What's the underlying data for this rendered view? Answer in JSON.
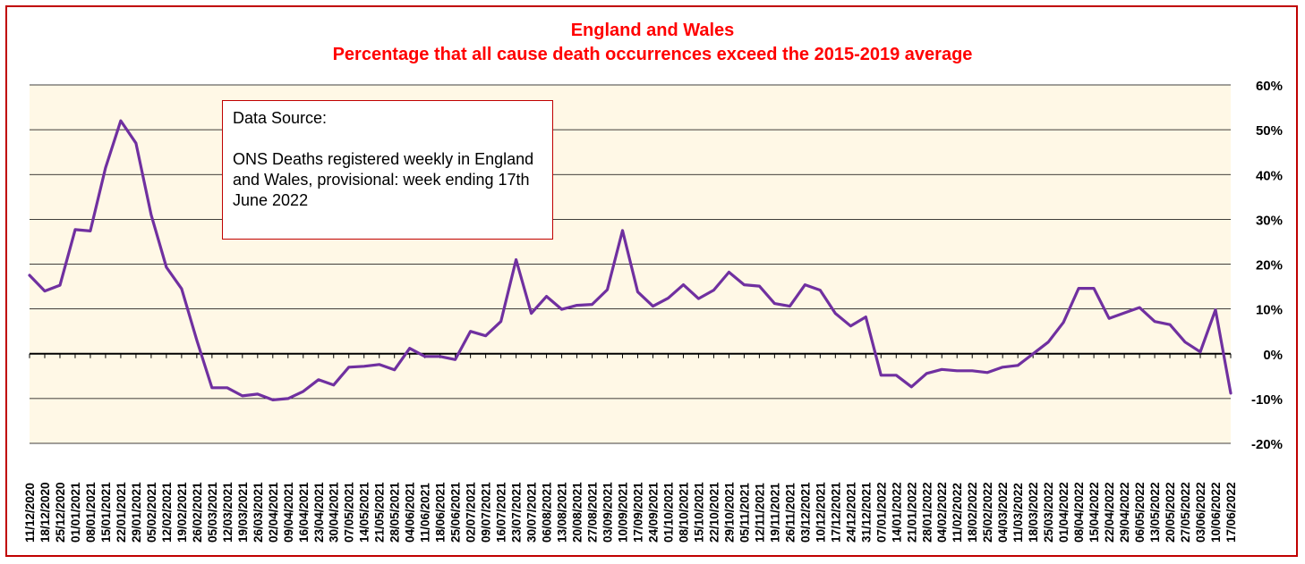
{
  "chart_data": {
    "type": "line",
    "title": "England and Wales",
    "subtitle": "Percentage that all cause death occurrences exceed the 2015-2019 average",
    "xlabel": "",
    "ylabel": "",
    "ylim": [
      -20,
      60
    ],
    "y_ticks": [
      60,
      50,
      40,
      30,
      20,
      10,
      0,
      -10,
      -20
    ],
    "y_tick_labels": [
      "60%",
      "50%",
      "40%",
      "30%",
      "20%",
      "10%",
      "0%",
      "-10%",
      "-20%"
    ],
    "y_axis_position": "right",
    "grid": true,
    "legend": "none",
    "background_color": "#fff8e6",
    "line_color": "#7030a0",
    "categories": [
      "11/12/2020",
      "18/12/2020",
      "25/12/2020",
      "01/01/2021",
      "08/01/2021",
      "15/01/2021",
      "22/01/2021",
      "29/01/2021",
      "05/02/2021",
      "12/02/2021",
      "19/02/2021",
      "26/02/2021",
      "05/03/2021",
      "12/03/2021",
      "19/03/2021",
      "26/03/2021",
      "02/04/2021",
      "09/04/2021",
      "16/04/2021",
      "23/04/2021",
      "30/04/2021",
      "07/05/2021",
      "14/05/2021",
      "21/05/2021",
      "28/05/2021",
      "04/06/2021",
      "11/06/2021",
      "18/06/2021",
      "25/06/2021",
      "02/07/2021",
      "09/07/2021",
      "16/07/2021",
      "23/07/2021",
      "30/07/2021",
      "06/08/2021",
      "13/08/2021",
      "20/08/2021",
      "27/08/2021",
      "03/09/2021",
      "10/09/2021",
      "17/09/2021",
      "24/09/2021",
      "01/10/2021",
      "08/10/2021",
      "15/10/2021",
      "22/10/2021",
      "29/10/2021",
      "05/11/2021",
      "12/11/2021",
      "19/11/2021",
      "26/11/2021",
      "03/12/2021",
      "10/12/2021",
      "17/12/2021",
      "24/12/2021",
      "31/12/2021",
      "07/01/2022",
      "14/01/2022",
      "21/01/2022",
      "28/01/2022",
      "04/02/2022",
      "11/02/2022",
      "18/02/2022",
      "25/02/2022",
      "04/03/2022",
      "11/03/2022",
      "18/03/2022",
      "25/03/2022",
      "01/04/2022",
      "08/04/2022",
      "15/04/2022",
      "22/04/2022",
      "29/04/2022",
      "06/05/2022",
      "13/05/2022",
      "20/05/2022",
      "27/05/2022",
      "03/06/2022",
      "10/06/2022",
      "17/06/2022"
    ],
    "values": [
      17.5,
      14.0,
      15.3,
      27.7,
      27.4,
      41.5,
      52.0,
      47.0,
      31.0,
      19.3,
      14.5,
      3.0,
      -7.6,
      -7.6,
      -9.4,
      -9.0,
      -10.3,
      -10.0,
      -8.4,
      -5.8,
      -7.0,
      -3.0,
      -2.8,
      -2.4,
      -3.6,
      1.2,
      -0.6,
      -0.6,
      -1.3,
      5.0,
      4.0,
      7.2,
      21.0,
      9.0,
      12.8,
      9.9,
      10.8,
      11.0,
      14.3,
      27.5,
      13.8,
      10.6,
      12.4,
      15.4,
      12.3,
      14.2,
      18.2,
      15.4,
      15.1,
      11.2,
      10.6,
      15.4,
      14.2,
      9.0,
      6.2,
      8.2,
      -4.8,
      -4.8,
      -7.4,
      -4.4,
      -3.5,
      -3.8,
      -3.8,
      -4.2,
      -3.0,
      -2.6,
      0.0,
      2.6,
      7.0,
      14.6,
      14.6,
      7.9,
      9.1,
      10.3,
      7.2,
      6.5,
      2.6,
      0.4,
      9.8,
      -8.8
    ]
  },
  "annotation": {
    "heading": "Data Source:",
    "body": "ONS Deaths registered weekly in England and Wales, provisional: week ending 17th June 2022"
  }
}
